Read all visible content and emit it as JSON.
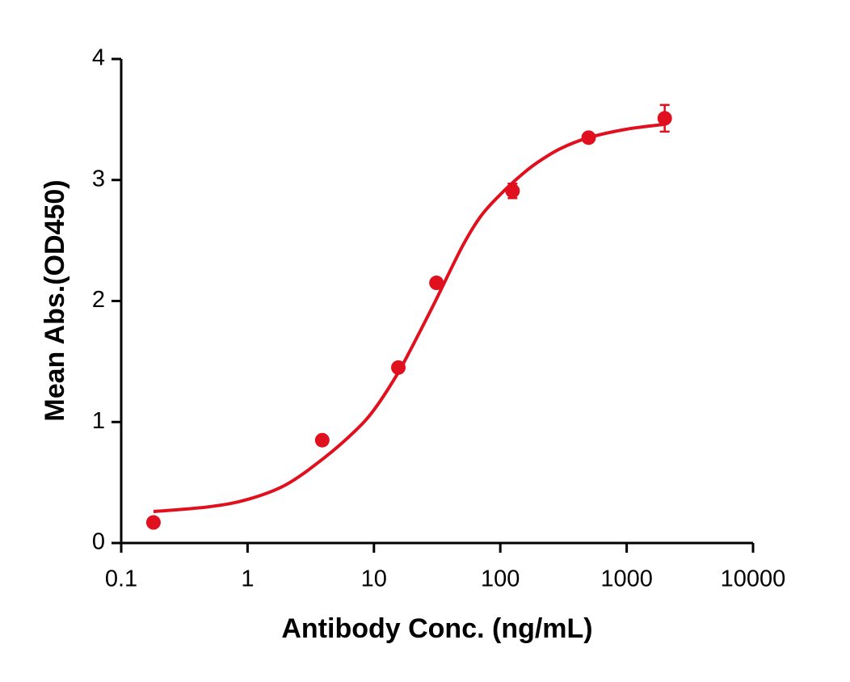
{
  "chart_data": {
    "type": "scatter",
    "x_label": "Antibody Conc. (ng/mL)",
    "y_label": "Mean Abs.(OD450)",
    "x_scale": "log",
    "xlim": [
      0.1,
      10000
    ],
    "xticks": [
      0.1,
      1,
      10,
      100,
      1000,
      10000
    ],
    "ylim": [
      0,
      4
    ],
    "yticks": [
      0,
      1,
      2,
      3,
      4
    ],
    "grid": false,
    "series": [
      {
        "color": "#e0101e",
        "x": [
          0.18,
          3.9,
          15.6,
          31.25,
          125,
          500,
          2000
        ],
        "values": [
          0.17,
          0.85,
          1.45,
          2.15,
          2.91,
          3.35,
          3.51
        ],
        "errors": [
          0.02,
          0.02,
          0.03,
          0.03,
          0.06,
          0.03,
          0.11
        ]
      },
      {
        "type": "line",
        "color": "#e0101e",
        "x": [
          0.18,
          0.5,
          1,
          2,
          4,
          7,
          10,
          15,
          20,
          30,
          50,
          70,
          100,
          150,
          200,
          300,
          500,
          1000,
          2000
        ],
        "values": [
          0.26,
          0.3,
          0.36,
          0.48,
          0.7,
          0.92,
          1.1,
          1.38,
          1.62,
          1.98,
          2.45,
          2.7,
          2.88,
          3.05,
          3.15,
          3.26,
          3.35,
          3.42,
          3.46
        ]
      }
    ]
  }
}
